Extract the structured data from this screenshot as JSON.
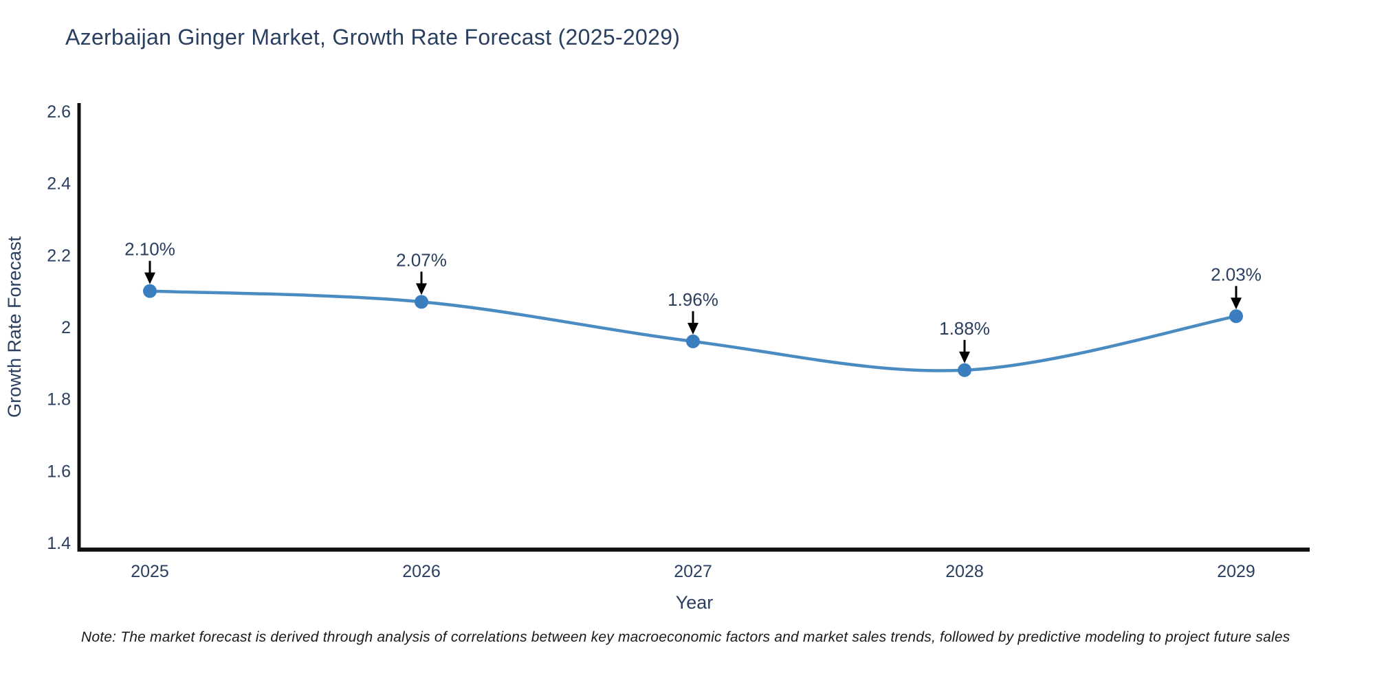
{
  "title": "Azerbaijan Ginger Market, Growth Rate Forecast (2025-2029)",
  "note": "Note: The market forecast is derived through analysis of correlations between key macroeconomic factors and market sales trends, followed by predictive modeling to project future sales",
  "chart_data": {
    "type": "line",
    "title": "Azerbaijan Ginger Market, Growth Rate Forecast (2025-2029)",
    "xlabel": "Year",
    "ylabel": "Growth Rate Forecast",
    "categories": [
      "2025",
      "2026",
      "2027",
      "2028",
      "2029"
    ],
    "values": [
      2.1,
      2.07,
      1.96,
      1.88,
      2.03
    ],
    "point_labels": [
      "2.10%",
      "2.07%",
      "1.96%",
      "1.88%",
      "2.03%"
    ],
    "ylim": [
      1.4,
      2.6
    ],
    "yticks": [
      1.4,
      1.6,
      1.8,
      2,
      2.2,
      2.4,
      2.6
    ],
    "ytick_labels": [
      "1.4",
      "1.6",
      "1.8",
      "2",
      "2.2",
      "2.4",
      "2.6"
    ],
    "grid": false,
    "legend": "none",
    "line_shape": "spline",
    "annotations": "value labels with down arrows above each point",
    "colors": {
      "line": "#4a8bc2",
      "marker": "#3a7ebf",
      "axis": "#111111",
      "text": "#2a3f5f",
      "arrow": "#000000",
      "background": "#ffffff"
    }
  }
}
